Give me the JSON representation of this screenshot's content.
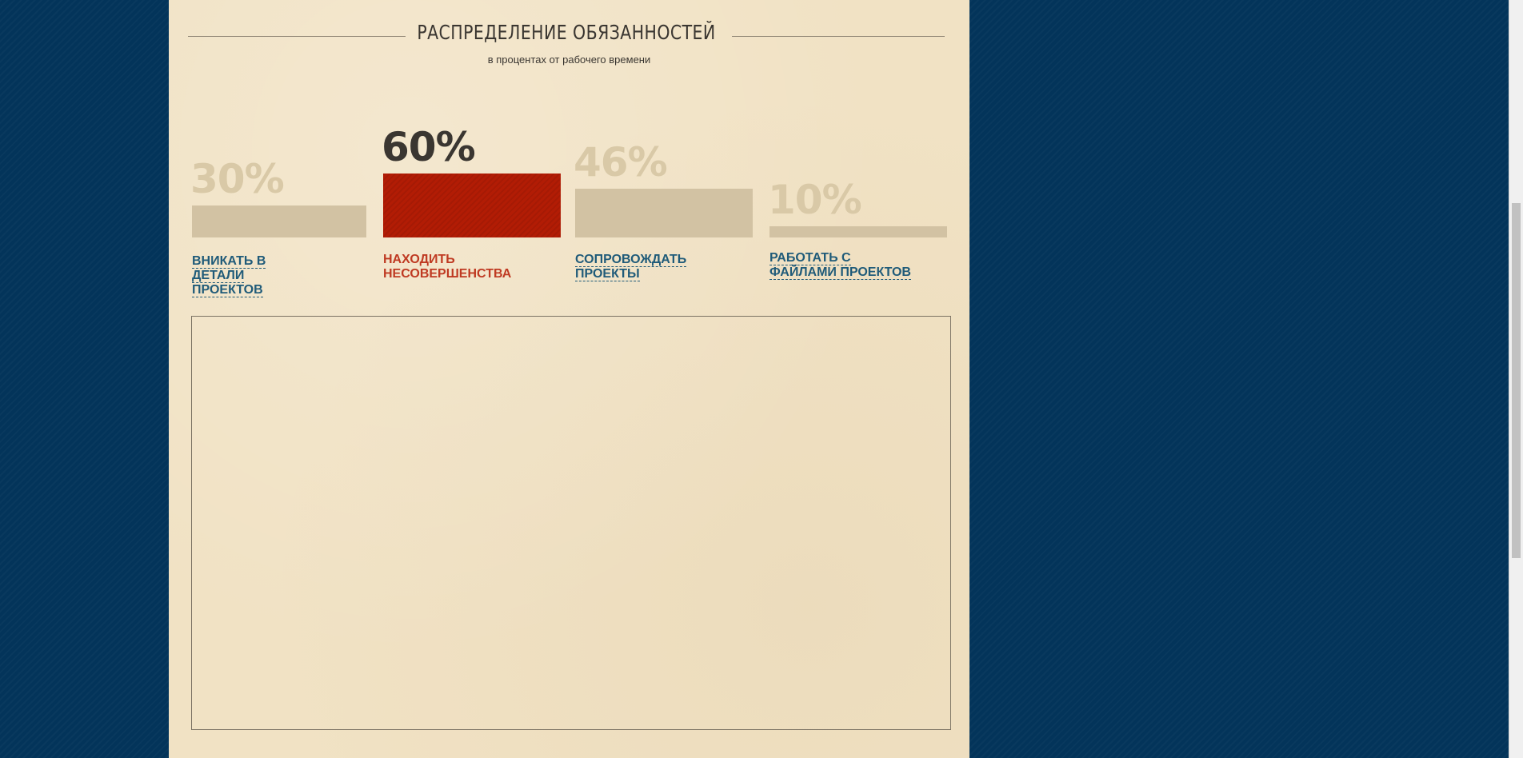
{
  "header": {
    "title": "РАСПРЕДЕЛЕНИЕ ОБЯЗАННОСТЕЙ",
    "subtitle": "в процентах от рабочего времени"
  },
  "chart_data": {
    "type": "bar",
    "title": "РАСПРЕДЕЛЕНИЕ ОБЯЗАННОСТЕЙ",
    "subtitle": "в процентах от рабочего времени",
    "categories": [
      "ВНИКАТЬ В ДЕТАЛИ ПРОЕКТОВ",
      "НАХОДИТЬ НЕСОВЕРШЕНСТВА",
      "СОПРОВОЖДАТЬ ПРОЕКТЫ",
      "РАБОТАТЬ С ФАЙЛАМИ ПРОЕКТОВ"
    ],
    "values": [
      30,
      60,
      46,
      10
    ],
    "value_labels": [
      "30%",
      "60%",
      "46%",
      "10%"
    ],
    "unit": "%",
    "ylim": [
      0,
      100
    ],
    "selected_index": 1,
    "grid": false,
    "colors": {
      "selected_bar": "#b21c05",
      "bar": "#d2c2a3",
      "selected_value": "#3a3631",
      "value": "#d9c9a7",
      "category_link": "#205b79",
      "selected_category": "#bf3a22"
    }
  },
  "colors": {
    "page_background": "#03345a",
    "paper": "#f1e2c4"
  }
}
